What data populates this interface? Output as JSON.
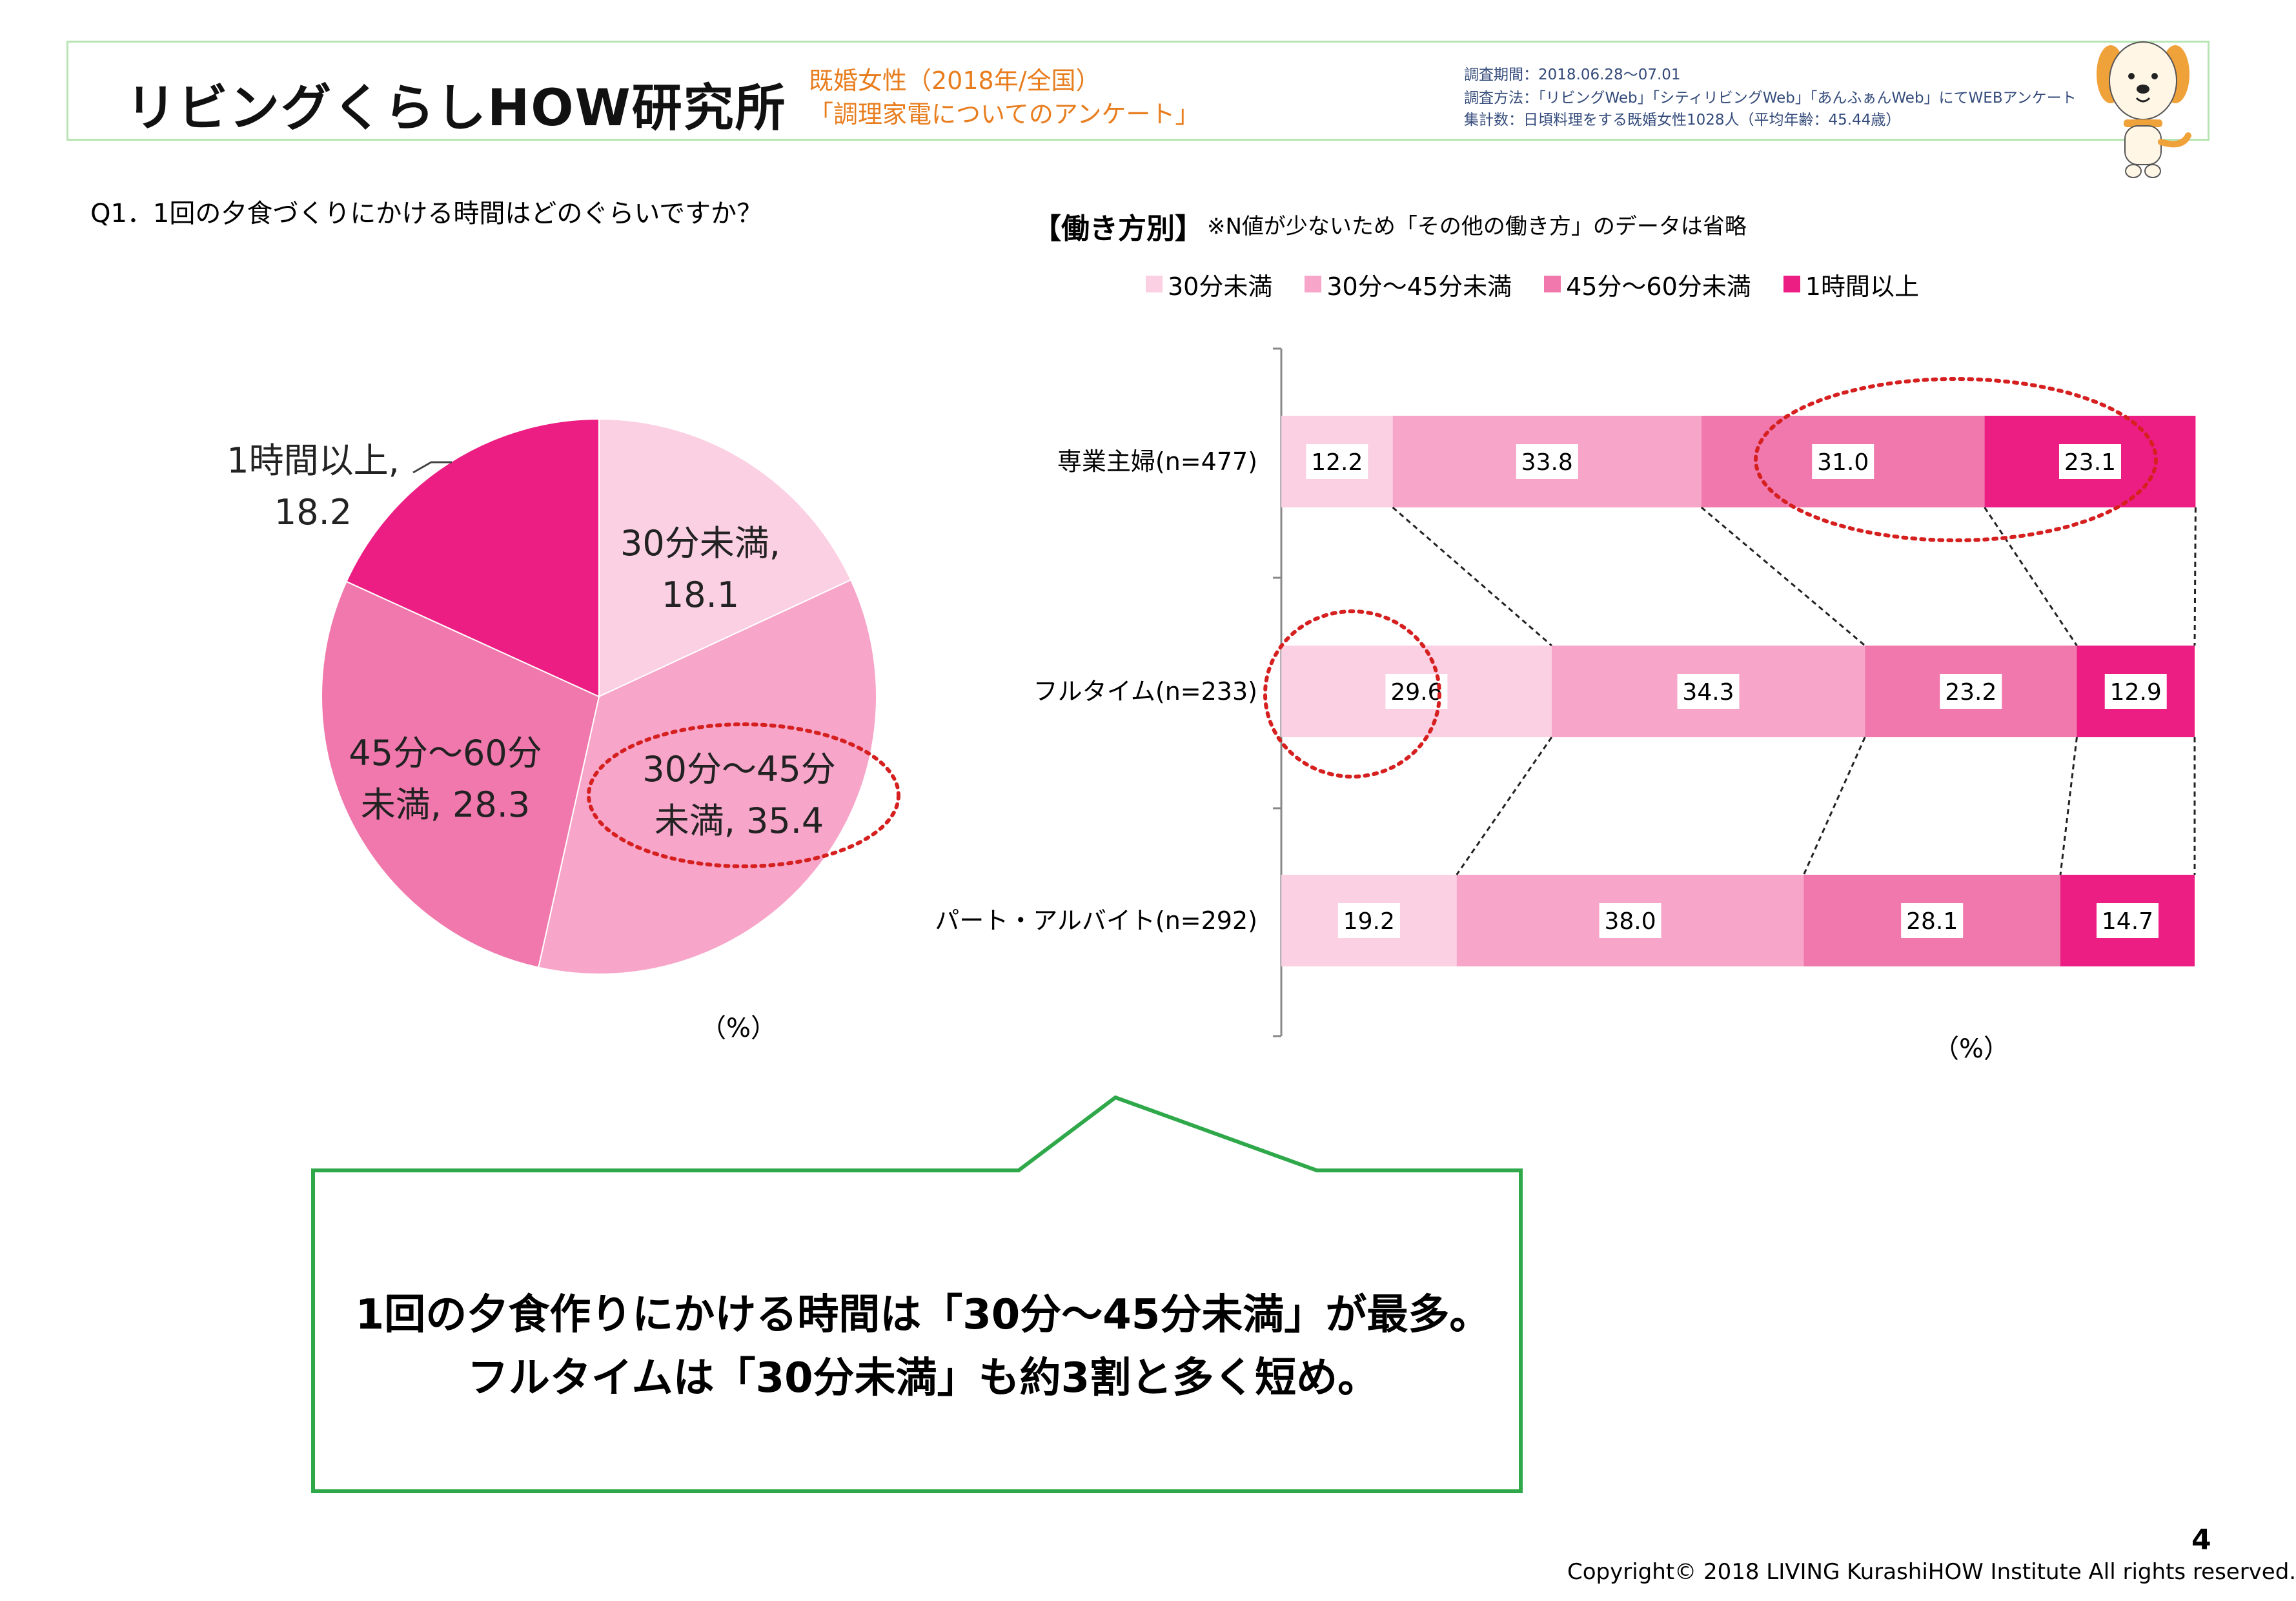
{
  "header": {
    "logo_text": "リビングくらしHOW研究所",
    "survey_subject": "既婚女性（2018年/全国）",
    "survey_title": "「調理家電についてのアンケート」",
    "meta": [
      "調査期間：2018.06.28～07.01",
      "調査方法：「リビングWeb」「シティリビングWeb」「あんふぁんWeb」にてWEBアンケート",
      "集計数：日頃料理をする既婚女性1028人（平均年齢：45.44歳）"
    ]
  },
  "question": "Q1．1回の夕食づくりにかける時間はどのぐらいですか？",
  "bar_heading": "【働き方別】",
  "bar_note": "※N値が少ないため「その他の働き方」のデータは省略",
  "colors": {
    "c1": "#fbd0e2",
    "c2": "#f7a5c9",
    "c3": "#f078ac",
    "c4": "#ec1e83",
    "accent_red": "#d62020",
    "green": "#2fa84a"
  },
  "chart_data": [
    {
      "type": "pie",
      "unit": "（%）",
      "slices": [
        {
          "label_lines": [
            "30分未満,",
            "18.1"
          ],
          "value": 18.1,
          "color": "#fbd0e2"
        },
        {
          "label_lines": [
            "30分～45分",
            "未満, 35.4"
          ],
          "value": 35.4,
          "color": "#f7a5c9"
        },
        {
          "label_lines": [
            "45分～60分",
            "未満, 28.3"
          ],
          "value": 28.3,
          "color": "#f078ac"
        },
        {
          "label_lines": [
            "1時間以上,",
            "18.2"
          ],
          "value": 18.2,
          "color": "#ec1e83"
        }
      ]
    },
    {
      "type": "bar",
      "stacked": true,
      "orientation": "horizontal",
      "unit": "（%）",
      "legend": [
        "30分未満",
        "30分～45分未満",
        "45分～60分未満",
        "1時間以上"
      ],
      "legend_position": "top",
      "categories": [
        "専業主婦(n=477)",
        "フルタイム(n=233)",
        "パート・アルバイト(n=292)"
      ],
      "series": [
        {
          "name": "30分未満",
          "values": [
            12.2,
            29.6,
            19.2
          ],
          "labels": [
            "12.2",
            "29.6",
            "19.2"
          ],
          "color": "#fbd0e2"
        },
        {
          "name": "30分～45分未満",
          "values": [
            33.8,
            34.3,
            38.0
          ],
          "labels": [
            "33.8",
            "34.3",
            "38.0"
          ],
          "color": "#f7a5c9"
        },
        {
          "name": "45分～60分未満",
          "values": [
            31.0,
            23.2,
            28.1
          ],
          "labels": [
            "31.0",
            "23.2",
            "28.1"
          ],
          "color": "#f078ac"
        },
        {
          "name": "1時間以上",
          "values": [
            23.1,
            12.9,
            14.7
          ],
          "labels": [
            "23.1",
            "12.9",
            "14.7"
          ],
          "color": "#ec1e83"
        }
      ],
      "xlim": [
        0,
        100
      ]
    }
  ],
  "conclusion": [
    "1回の夕食作りにかける時間は「30分～45分未満」が最多。",
    "フルタイムは「30分未満」も約3割と多く短め。"
  ],
  "page_number": "4",
  "copyright": "Copyright© 2018 LIVING KurashiHOW Institute All rights reserved."
}
